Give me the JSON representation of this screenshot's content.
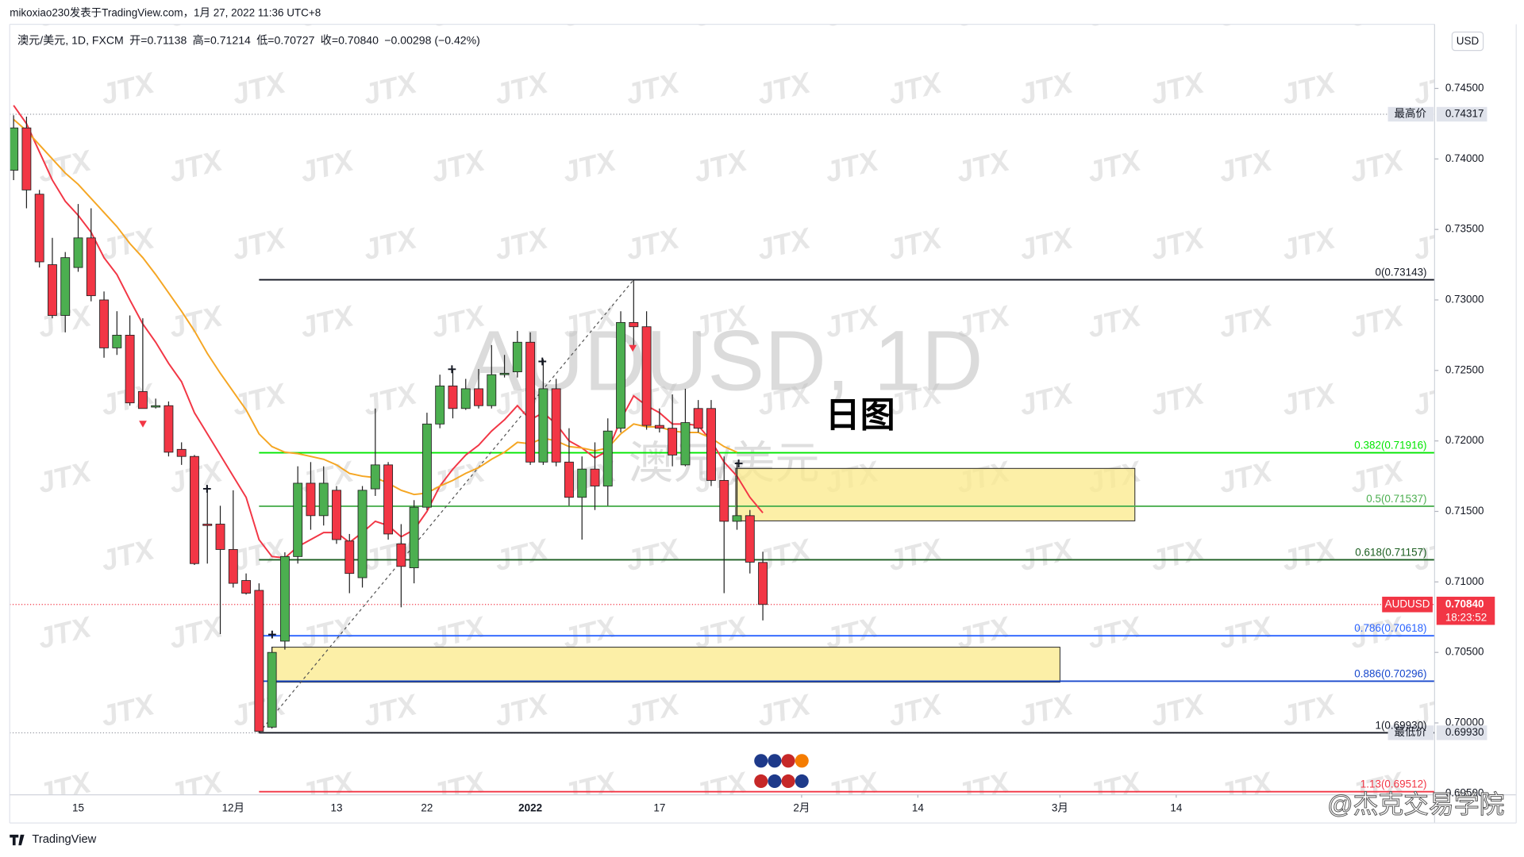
{
  "header": "mikoxiao230发表于TradingView.com，1月 27, 2022 11:36 UTC+8",
  "footer_logo": "TradingView",
  "credit": "@杰克交易学院",
  "chart_data": {
    "type": "candlestick",
    "symbol": "澳元/美元, 1D, FXCM",
    "ohlc_labels": [
      "开=",
      "高=",
      "低=",
      "收="
    ],
    "change": "−0.00298 (−0.42%)",
    "last_close_label": "0.70840",
    "last_label": "AUDUSD",
    "countdown": "18:23:52",
    "currency": "USD",
    "watermark_title": "AUDUSD, 1D",
    "watermark_subtitle": "澳元/美元",
    "watermark_logo": "JTX",
    "annotation": "日图",
    "categories": [
      null,
      null,
      null,
      null,
      null,
      "15",
      null,
      null,
      null,
      null,
      null,
      null,
      null,
      null,
      null,
      null,
      null,
      "12月",
      null,
      null,
      null,
      null,
      null,
      null,
      null,
      "13",
      null,
      null,
      null,
      null,
      null,
      null,
      "22",
      null,
      null,
      null,
      null,
      null,
      null,
      null,
      "2022",
      null,
      null,
      null,
      null,
      null,
      null,
      null,
      null,
      null,
      "17",
      null,
      null,
      null,
      null,
      null,
      null,
      null,
      null
    ],
    "open": [
      0.7392,
      0.7422,
      0.7375,
      0.7325,
      0.7289,
      0.7323,
      0.7344,
      0.73,
      0.7266,
      0.7275,
      0.7235,
      0.7224,
      0.7225,
      0.7194,
      0.7189,
      0.7141,
      0.7141,
      0.7123,
      0.7101,
      0.7094,
      0.6997,
      0.7058,
      0.7118,
      0.717,
      0.7147,
      0.7165,
      0.7129,
      0.7103,
      0.7166,
      0.7183,
      0.7127,
      0.711,
      0.7153,
      0.7212,
      0.7239,
      0.7223,
      0.7237,
      0.7225,
      0.7247,
      0.7249,
      0.727,
      0.7185,
      0.7237,
      0.7185,
      0.716,
      0.718,
      0.7168,
      0.7209,
      0.7284,
      0.7281,
      0.7211,
      0.7209,
      0.7183,
      0.7223,
      0.7223,
      0.7172,
      0.7143,
      0.7147,
      0.71138
    ],
    "high": [
      0.7431,
      0.743,
      0.7378,
      0.7344,
      0.7334,
      0.7368,
      0.7365,
      0.7306,
      0.7292,
      0.7289,
      0.7287,
      0.723,
      0.7228,
      0.7199,
      0.719,
      0.7168,
      0.7154,
      0.7165,
      0.7106,
      0.7099,
      0.7054,
      0.7121,
      0.7182,
      0.7185,
      0.7182,
      0.7168,
      0.7134,
      0.7168,
      0.7223,
      0.7185,
      0.7141,
      0.7158,
      0.722,
      0.7247,
      0.7251,
      0.7244,
      0.7251,
      0.7268,
      0.7261,
      0.7278,
      0.7277,
      0.7258,
      0.7244,
      0.7209,
      0.7189,
      0.7199,
      0.7216,
      0.7292,
      0.73143,
      0.7292,
      0.7223,
      0.7233,
      0.7237,
      0.7229,
      0.7229,
      0.7189,
      0.7185,
      0.7151,
      0.71214
    ],
    "low": [
      0.7385,
      0.7365,
      0.7323,
      0.7287,
      0.7277,
      0.732,
      0.7299,
      0.7259,
      0.7261,
      0.7225,
      0.7223,
      0.7223,
      0.7189,
      0.7183,
      0.7112,
      0.7113,
      0.7063,
      0.7096,
      0.7091,
      0.6993,
      0.6996,
      0.7052,
      0.7113,
      0.7137,
      0.714,
      0.7127,
      0.7092,
      0.7096,
      0.7161,
      0.713,
      0.7082,
      0.7099,
      0.7151,
      0.7209,
      0.7216,
      0.7222,
      0.7223,
      0.7223,
      0.7245,
      0.7245,
      0.7183,
      0.7183,
      0.7182,
      0.7154,
      0.713,
      0.7151,
      0.7154,
      0.7206,
      0.7265,
      0.7208,
      0.7206,
      0.7182,
      0.7182,
      0.7206,
      0.7168,
      0.7092,
      0.7137,
      0.7106,
      0.70727
    ],
    "close": [
      0.7422,
      0.7378,
      0.7327,
      0.7289,
      0.733,
      0.7344,
      0.7303,
      0.7266,
      0.7275,
      0.7227,
      0.7223,
      0.7225,
      0.7192,
      0.7189,
      0.7113,
      0.714,
      0.7123,
      0.7099,
      0.7092,
      0.6994,
      0.705,
      0.7118,
      0.717,
      0.7147,
      0.717,
      0.713,
      0.7106,
      0.7165,
      0.7183,
      0.7134,
      0.7111,
      0.7153,
      0.7212,
      0.7239,
      0.7223,
      0.7237,
      0.7225,
      0.7247,
      0.7248,
      0.727,
      0.7185,
      0.7237,
      0.7185,
      0.716,
      0.718,
      0.7168,
      0.7207,
      0.7284,
      0.7281,
      0.7211,
      0.7209,
      0.719,
      0.7213,
      0.7209,
      0.7172,
      0.7143,
      0.7147,
      0.7114,
      0.7084
    ],
    "up_color": "#4caf50",
    "down_color": "#f23645",
    "overlays": [
      {
        "color": "#f23645",
        "values": [
          0.7438,
          0.7425,
          0.7405,
          0.7385,
          0.737,
          0.736,
          0.7348,
          0.733,
          0.7318,
          0.73,
          0.7283,
          0.727,
          0.7255,
          0.7242,
          0.722,
          0.7205,
          0.719,
          0.7175,
          0.716,
          0.713,
          0.7118,
          0.7117,
          0.7125,
          0.713,
          0.7135,
          0.7135,
          0.7128,
          0.7135,
          0.7143,
          0.714,
          0.7132,
          0.7137,
          0.715,
          0.7168,
          0.718,
          0.719,
          0.7197,
          0.7207,
          0.7215,
          0.7225,
          0.7215,
          0.722,
          0.7212,
          0.72,
          0.7195,
          0.7188,
          0.7193,
          0.7215,
          0.7232,
          0.7225,
          0.722,
          0.7212,
          0.7212,
          0.7211,
          0.72,
          0.7185,
          0.7175,
          0.716,
          0.7149
        ]
      },
      {
        "color": "#f5a623",
        "values": [
          0.7428,
          0.742,
          0.741,
          0.74,
          0.739,
          0.7382,
          0.7372,
          0.7362,
          0.7352,
          0.734,
          0.733,
          0.7318,
          0.7305,
          0.7292,
          0.7278,
          0.7262,
          0.7248,
          0.7235,
          0.7222,
          0.7205,
          0.7196,
          0.7192,
          0.7191,
          0.7189,
          0.7187,
          0.7183,
          0.7177,
          0.7175,
          0.7174,
          0.717,
          0.7165,
          0.7162,
          0.7163,
          0.7168,
          0.7172,
          0.7177,
          0.7181,
          0.7187,
          0.7192,
          0.7199,
          0.7198,
          0.7202,
          0.72,
          0.7196,
          0.7195,
          0.7193,
          0.7195,
          0.7205,
          0.7212,
          0.721,
          0.721,
          0.7207,
          0.7206,
          0.7206,
          0.7202,
          0.7196,
          0.7192,
          null,
          null
        ]
      }
    ],
    "xlim": [
      -0.3,
      110
    ],
    "xticks_extra": [
      {
        "value": 61,
        "label": "2月"
      },
      {
        "value": 70,
        "label": "14"
      },
      {
        "value": 81,
        "label": "3月"
      },
      {
        "value": 90,
        "label": "14"
      }
    ],
    "ylim": [
      0.6949,
      0.74955
    ],
    "yticks": [
      {
        "value": 0.695,
        "label": "0.69500"
      },
      {
        "value": 0.7,
        "label": "0.70000"
      },
      {
        "value": 0.705,
        "label": "0.70500"
      },
      {
        "value": 0.71,
        "label": "0.71000"
      },
      {
        "value": 0.715,
        "label": "0.71500"
      },
      {
        "value": 0.72,
        "label": "0.72000"
      },
      {
        "value": 0.725,
        "label": "0.72500"
      },
      {
        "value": 0.73,
        "label": "0.73000"
      },
      {
        "value": 0.735,
        "label": "0.73500"
      },
      {
        "value": 0.74,
        "label": "0.74000"
      },
      {
        "value": 0.745,
        "label": "0.74500"
      }
    ],
    "fib": {
      "x": [
        19,
        48
      ],
      "levels": [
        {
          "label": "0(0.73143)",
          "value": 0.73143,
          "color": "#131722"
        },
        {
          "label": "0.382(0.71916)",
          "value": 0.71916,
          "color": "#00e600"
        },
        {
          "label": "0.5(0.71537)",
          "value": 0.71537,
          "color": "#4caf50"
        },
        {
          "label": "0.618(0.71157)",
          "value": 0.71157,
          "color": "#1b5e20"
        },
        {
          "label": "0.786(0.70618)",
          "value": 0.70618,
          "color": "#2962ff"
        },
        {
          "label": "0.886(0.70296)",
          "value": 0.70296,
          "color": "#1848cc"
        },
        {
          "label": "1(0.69930)",
          "value": 0.6993,
          "color": "#131722"
        },
        {
          "label": "1.13(0.69512)",
          "value": 0.69512,
          "color": "#f23645"
        }
      ]
    },
    "zones": [
      {
        "x": [
          55.9,
          86.8
        ],
        "y": [
          0.71433,
          0.71805
        ]
      },
      {
        "x": [
          20,
          81
        ],
        "y": [
          0.70289,
          0.70537
        ]
      }
    ],
    "price_lines": [
      {
        "name": "最高价",
        "value": 0.74317
      },
      {
        "name": "最低价",
        "value": 0.6993,
        "value_label": "0.69930"
      }
    ]
  }
}
